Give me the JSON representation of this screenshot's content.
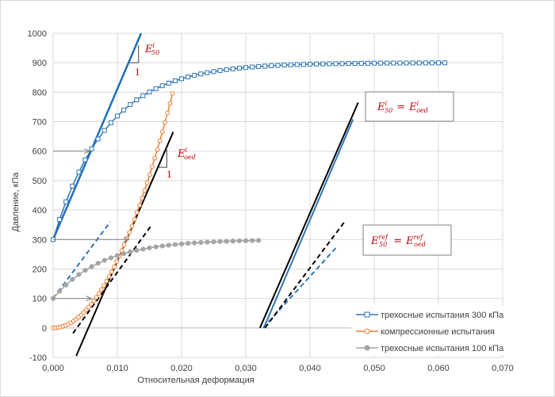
{
  "chart_data": {
    "type": "scatter",
    "xlabel": "Относительная деформация",
    "ylabel": "Давление, кПа",
    "xlim": [
      0,
      0.07
    ],
    "ylim": [
      -100,
      1000
    ],
    "x_ticks": [
      "0,000",
      "0,010",
      "0,020",
      "0,030",
      "0,040",
      "0,050",
      "0,060",
      "0,070"
    ],
    "y_ticks": [
      "-100",
      "0",
      "100",
      "200",
      "300",
      "400",
      "500",
      "600",
      "700",
      "800",
      "900",
      "1000"
    ],
    "grid": true,
    "legend_position": "bottom-right",
    "legend": [
      "трехосные испытания 300 кПа",
      "компрессионные испытания",
      "трехосные испытания 100 кПа"
    ],
    "series": [
      {
        "name": "трехосные испытания 300 кПа",
        "color": "#2e75b6",
        "marker": "square-open",
        "curve": {
          "kind": "exp",
          "y0": 300,
          "yinf": 900,
          "k": 120
        },
        "x_start": 0,
        "x_end": 0.061,
        "n_points": 62
      },
      {
        "name": "компрессионные испытания",
        "color": "#ed7d31",
        "marker": "circle-open",
        "curve": {
          "kind": "power",
          "a": 2300000,
          "p": 2
        },
        "x_start": 0,
        "x_end": 0.0186,
        "n_points": 48
      },
      {
        "name": "трехосные испытания 100 кПа",
        "color": "#a5a5a5",
        "marker": "circle-filled",
        "curve": {
          "kind": "exp",
          "y0": 100,
          "yinf": 300,
          "k": 130
        },
        "x_start": 0,
        "x_end": 0.032,
        "n_points": 33
      }
    ],
    "lines": [
      {
        "id": "tangent-300",
        "color": "#1f6fb8",
        "dash": false,
        "width": 2.5,
        "x1": 0,
        "y1": 300,
        "x2": 0.0137,
        "y2": 1000
      },
      {
        "id": "tangent-100",
        "color": "#2e75b6",
        "dash": true,
        "width": 2,
        "x1": 0,
        "y1": 100,
        "x2": 0.0089,
        "y2": 360
      },
      {
        "id": "oed-tangent",
        "color": "#000000",
        "dash": false,
        "width": 2,
        "x1": 0.0036,
        "y1": -95,
        "x2": 0.0187,
        "y2": 665
      },
      {
        "id": "oed-tangent-dashed",
        "color": "#000000",
        "dash": true,
        "width": 2,
        "x1": 0.0031,
        "y1": -18,
        "x2": 0.0152,
        "y2": 345
      },
      {
        "id": "shift-blue-solid",
        "color": "#2e75b6",
        "dash": false,
        "width": 2,
        "x1": 0.0328,
        "y1": 0,
        "x2": 0.0467,
        "y2": 708
      },
      {
        "id": "shift-black-solid",
        "color": "#000000",
        "dash": false,
        "width": 2,
        "x1": 0.0322,
        "y1": 0,
        "x2": 0.0475,
        "y2": 765
      },
      {
        "id": "shift-blue-dashed",
        "color": "#2e75b6",
        "dash": true,
        "width": 2,
        "x1": 0.0327,
        "y1": 0,
        "x2": 0.0443,
        "y2": 278
      },
      {
        "id": "shift-black-dashed",
        "color": "#000000",
        "dash": true,
        "width": 2,
        "x1": 0.033,
        "y1": 0,
        "x2": 0.0453,
        "y2": 358
      }
    ],
    "arrows": [
      {
        "id": "arrow-600",
        "x1": 0,
        "y1": 600,
        "x2": 0.0057,
        "y2": 600
      },
      {
        "id": "arrow-300",
        "x1": 0,
        "y1": 300,
        "x2": 0.0118,
        "y2": 300
      },
      {
        "id": "arrow-100",
        "x1": 0,
        "y1": 100,
        "x2": 0.006,
        "y2": 100
      }
    ],
    "slope_triangles": [
      {
        "id": "slope-triangle-e50",
        "x1": 0.0119,
        "y1": 900,
        "x2": 0.0133,
        "y2": 900,
        "x3": 0.0133,
        "y3": 960
      },
      {
        "id": "slope-triangle-eoed",
        "x1": 0.0164,
        "y1": 545,
        "x2": 0.0177,
        "y2": 545,
        "x3": 0.0177,
        "y3": 605
      }
    ],
    "annotations": {
      "e50_label": {
        "base": "E",
        "sub": "50",
        "sup": "i"
      },
      "e50_one": "1",
      "eoed_label": {
        "base": "E",
        "sub": "oed",
        "sup": "i"
      },
      "eoed_one": "1",
      "box1": {
        "lhs_base": "E",
        "lhs_sub": "50",
        "lhs_sup": "i",
        "eq": "=",
        "rhs_base": "E",
        "rhs_sub": "oed",
        "rhs_sup": "i"
      },
      "box2": {
        "lhs_base": "E",
        "lhs_sub": "50",
        "lhs_sup": "ref",
        "eq": "=",
        "rhs_base": "E",
        "rhs_sub": "oed",
        "rhs_sup": "ref"
      }
    }
  }
}
